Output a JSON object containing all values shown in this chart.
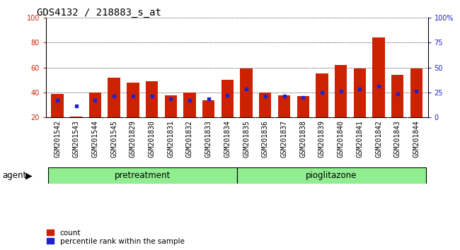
{
  "title": "GDS4132 / 218883_s_at",
  "samples": [
    "GSM201542",
    "GSM201543",
    "GSM201544",
    "GSM201545",
    "GSM201829",
    "GSM201830",
    "GSM201831",
    "GSM201832",
    "GSM201833",
    "GSM201834",
    "GSM201835",
    "GSM201836",
    "GSM201837",
    "GSM201838",
    "GSM201839",
    "GSM201840",
    "GSM201841",
    "GSM201842",
    "GSM201843",
    "GSM201844"
  ],
  "count_values": [
    39,
    21,
    40,
    52,
    48,
    49,
    38,
    40,
    34,
    50,
    59,
    40,
    38,
    37,
    55,
    62,
    59,
    84,
    54,
    59
  ],
  "pct_values": [
    34,
    29,
    34,
    37,
    37,
    37,
    35,
    34,
    35,
    38,
    43,
    37,
    37,
    36,
    40,
    41,
    43,
    45,
    39,
    41
  ],
  "group_labels": [
    "pretreatment",
    "pioglitazone"
  ],
  "group_color": "#90ee90",
  "agent_label": "agent",
  "bar_color_red": "#cc2200",
  "bar_color_blue": "#2222cc",
  "ylim_left": [
    20,
    100
  ],
  "ylim_right": [
    0,
    100
  ],
  "yticks_left": [
    20,
    40,
    60,
    80,
    100
  ],
  "yticks_right": [
    0,
    25,
    50,
    75,
    100
  ],
  "ytick_labels_right": [
    "0",
    "25",
    "50",
    "75",
    "100%"
  ],
  "xtick_bg": "#c8c8c8",
  "plot_bg": "#ffffff",
  "title_fontsize": 10,
  "tick_fontsize": 7,
  "label_fontsize": 8.5
}
